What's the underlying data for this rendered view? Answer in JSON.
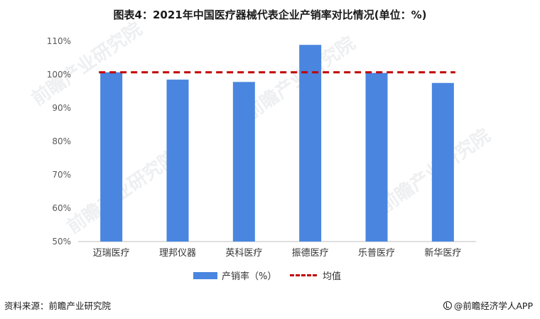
{
  "title": "图表4：2021年中国医疗器械代表企业产销率对比情况(单位：%)",
  "source_left": "资料来源：前瞻产业研究院",
  "source_right": "@前瞻经济学人APP",
  "watermark": "前瞻产业研究院",
  "colors": {
    "bar": "#4a86e0",
    "average_line": "#c00000",
    "axis": "#bfbfbf",
    "text": "#595959"
  },
  "chart_data": {
    "type": "bar",
    "categories": [
      "迈瑞医疗",
      "理邦仪器",
      "英科医疗",
      "振德医疗",
      "乐普医疗",
      "新华医疗"
    ],
    "series": [
      {
        "name": "产销率（%）",
        "values": [
          100.7,
          98.5,
          97.8,
          108.9,
          100.5,
          97.5
        ]
      },
      {
        "name": "均值",
        "type": "line",
        "style": "dashed",
        "values": [
          100.7,
          100.7,
          100.7,
          100.7,
          100.7,
          100.7
        ]
      }
    ],
    "ylim": [
      50,
      110
    ],
    "yticks": [
      "50%",
      "60%",
      "70%",
      "80%",
      "90%",
      "100%",
      "110%"
    ],
    "grid": false,
    "legend_position": "bottom"
  }
}
